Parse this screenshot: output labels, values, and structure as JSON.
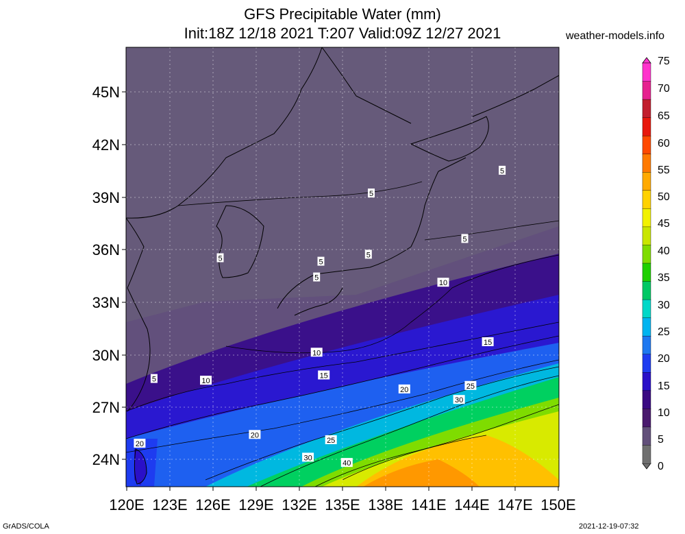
{
  "header": {
    "title": "GFS Precipitable Water (mm)",
    "subtitle": "Init:18Z 12/18 2021 T:207 Valid:09Z 12/27 2021",
    "site": "weather-models.info"
  },
  "axes": {
    "lat_labels": [
      "45N",
      "42N",
      "39N",
      "36N",
      "33N",
      "30N",
      "27N",
      "24N"
    ],
    "lon_labels": [
      "120E",
      "123E",
      "126E",
      "129E",
      "132E",
      "135E",
      "138E",
      "141E",
      "144E",
      "147E",
      "150E"
    ]
  },
  "colorbar": {
    "labels": [
      "75",
      "70",
      "65",
      "60",
      "55",
      "50",
      "45",
      "40",
      "35",
      "30",
      "25",
      "20",
      "15",
      "10",
      "5",
      "0"
    ],
    "colors": [
      "#ff33cc",
      "#e6218f",
      "#c21f2e",
      "#e8180d",
      "#ff4a00",
      "#ff7a00",
      "#ffaa00",
      "#ffd200",
      "#f2f200",
      "#c9e600",
      "#7fdc00",
      "#1fd000",
      "#00c864",
      "#00d8c8",
      "#00b4f0",
      "#1e78f0",
      "#1e3cf0",
      "#2a10c8",
      "#3a0a82",
      "#4a1a6e",
      "#62507a",
      "#707070"
    ]
  },
  "contour_labels": [
    {
      "text": "5",
      "lon": 126.5,
      "lat": 35.5
    },
    {
      "text": "5",
      "lon": 137.0,
      "lat": 39.2
    },
    {
      "text": "5",
      "lon": 146.1,
      "lat": 40.5
    },
    {
      "text": "5",
      "lon": 143.5,
      "lat": 36.6
    },
    {
      "text": "5",
      "lon": 133.5,
      "lat": 35.3
    },
    {
      "text": "5",
      "lon": 136.8,
      "lat": 35.7
    },
    {
      "text": "5",
      "lon": 133.2,
      "lat": 34.4
    },
    {
      "text": "5",
      "lon": 121.9,
      "lat": 28.6
    },
    {
      "text": "10",
      "lon": 142.0,
      "lat": 34.1
    },
    {
      "text": "10",
      "lon": 133.2,
      "lat": 30.1
    },
    {
      "text": "10",
      "lon": 125.5,
      "lat": 28.5
    },
    {
      "text": "15",
      "lon": 145.1,
      "lat": 30.7
    },
    {
      "text": "15",
      "lon": 133.7,
      "lat": 28.8
    },
    {
      "text": "20",
      "lon": 139.3,
      "lat": 28.0
    },
    {
      "text": "20",
      "lon": 128.9,
      "lat": 25.4
    },
    {
      "text": "20",
      "lon": 120.9,
      "lat": 24.9
    },
    {
      "text": "25",
      "lon": 143.9,
      "lat": 28.2
    },
    {
      "text": "25",
      "lon": 134.2,
      "lat": 25.1
    },
    {
      "text": "30",
      "lon": 143.1,
      "lat": 27.4
    },
    {
      "text": "30",
      "lon": 132.6,
      "lat": 24.1
    },
    {
      "text": "40",
      "lon": 135.3,
      "lat": 23.8
    }
  ],
  "footer": {
    "left": "GrADS/COLA",
    "right": "2021-12-19-07:32"
  }
}
